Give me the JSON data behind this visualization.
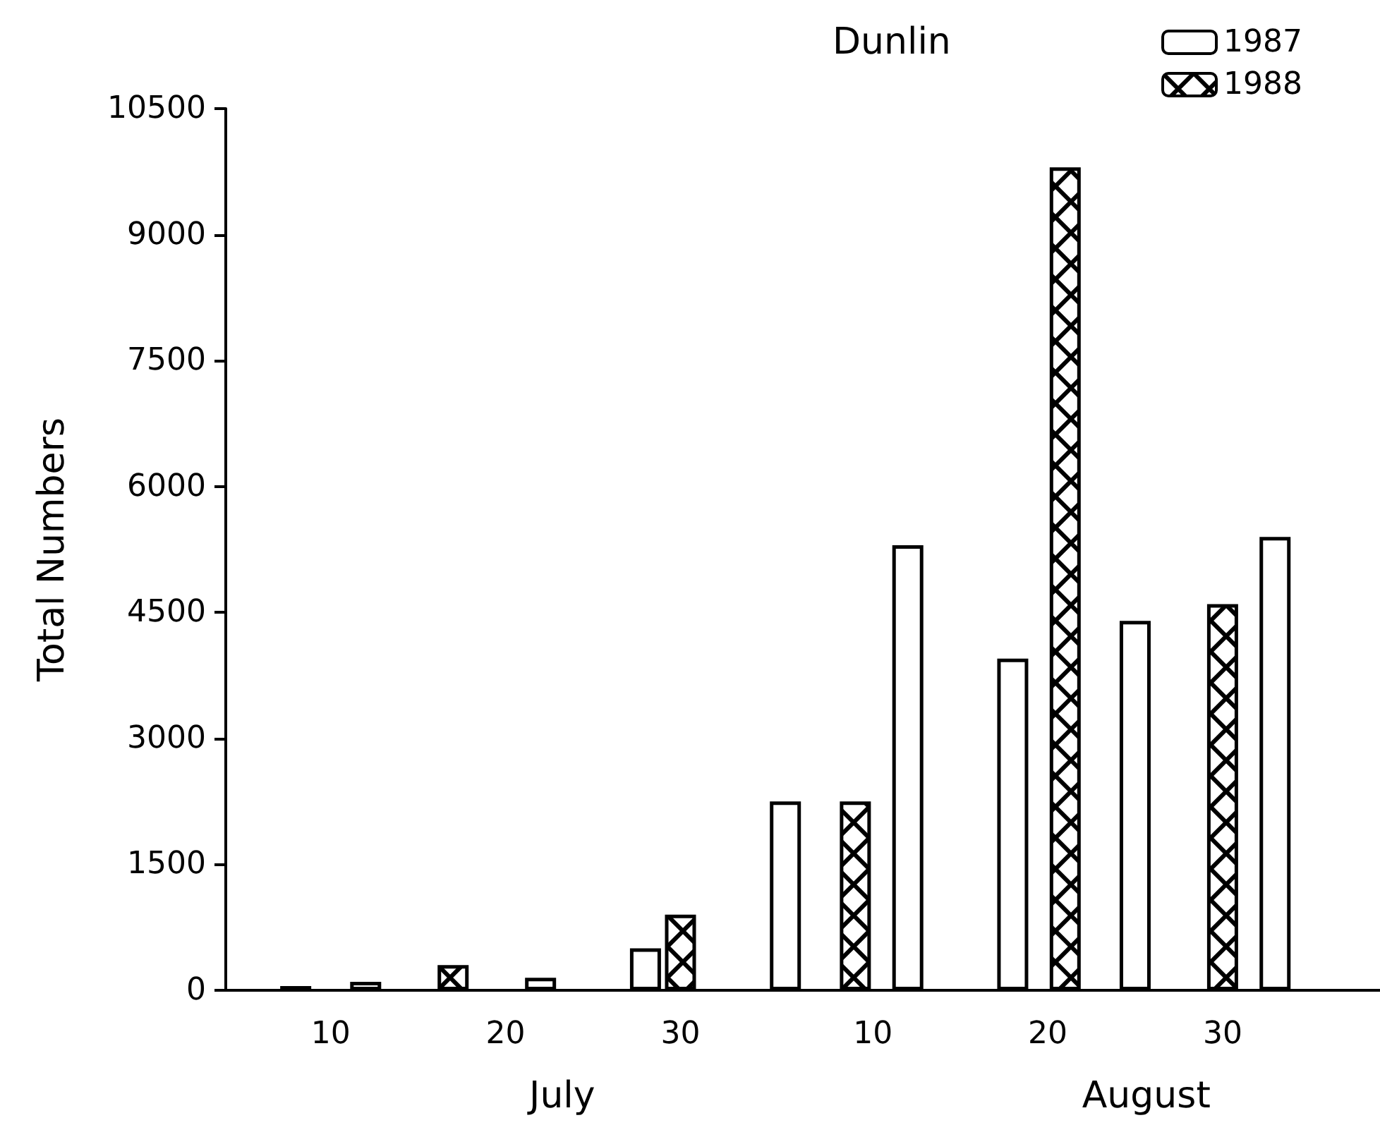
{
  "chart_data": {
    "type": "bar",
    "title": "Dunlin",
    "ylabel": "Total Numbers",
    "series": [
      {
        "name": "1987",
        "color": "#ffffff",
        "x": [
          "--07-08",
          "--07-12",
          "--07-22",
          "--07-28",
          "--08-05",
          "--08-12",
          "--08-18",
          "--08-25",
          "--09-02"
        ],
        "values": [
          50,
          100,
          150,
          500,
          2250,
          5300,
          3950,
          4400,
          5400
        ]
      },
      {
        "name": "1988",
        "color": "#000000",
        "x": [
          "--07-17",
          "--07-30",
          "--08-09",
          "--08-21",
          "--08-30"
        ],
        "values": [
          300,
          900,
          2250,
          9800,
          4600
        ]
      }
    ],
    "xlim": [
      "--07-04",
      "--09-08"
    ],
    "xticks": [
      {
        "value": "--07-10",
        "label": "10"
      },
      {
        "value": "--07-20",
        "label": "20"
      },
      {
        "value": "--07-30",
        "label": "30"
      },
      {
        "value": "--08-10",
        "label": "10"
      },
      {
        "value": "--08-20",
        "label": "20"
      },
      {
        "value": "--08-30",
        "label": "30"
      }
    ],
    "ylim": [
      0,
      10500
    ],
    "yticks": [
      0,
      1500,
      3000,
      4500,
      6000,
      7500,
      9000,
      10500
    ],
    "annotations": [
      "July",
      "August"
    ],
    "grid": false,
    "legend": "top right"
  }
}
